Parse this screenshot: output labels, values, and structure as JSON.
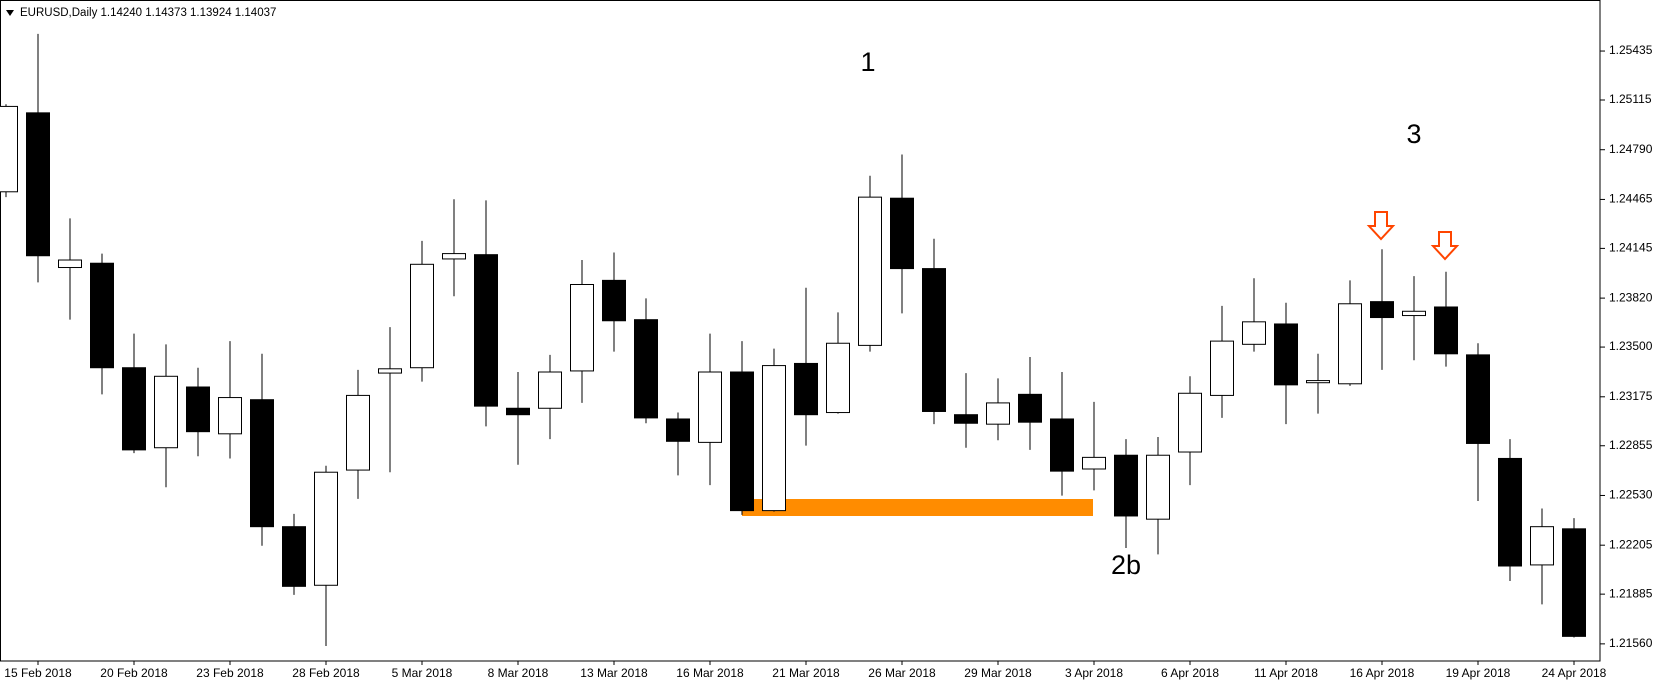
{
  "chart_data": {
    "type": "candlestick",
    "title": "EURUSD,Daily  1.14240 1.14373 1.13924 1.14037",
    "categories": [
      null,
      "15 Feb 2018",
      null,
      null,
      "20 Feb 2018",
      null,
      null,
      "23 Feb 2018",
      null,
      null,
      "28 Feb 2018",
      null,
      null,
      "5 Mar 2018",
      null,
      null,
      "8 Mar 2018",
      null,
      null,
      "13 Mar 2018",
      null,
      null,
      "16 Mar 2018",
      null,
      null,
      "21 Mar 2018",
      null,
      null,
      "26 Mar 2018",
      null,
      null,
      "29 Mar 2018",
      null,
      null,
      "3 Apr 2018",
      null,
      null,
      "6 Apr 2018",
      null,
      null,
      "11 Apr 2018",
      null,
      null,
      "16 Apr 2018",
      null,
      null,
      "19 Apr 2018",
      null,
      null,
      "24 Apr 2018"
    ],
    "open": [
      1.24515,
      1.25031,
      1.2402,
      1.24048,
      1.23365,
      1.22842,
      1.23239,
      1.22933,
      1.23156,
      1.22326,
      1.21943,
      1.22696,
      1.2333,
      1.23365,
      1.24076,
      1.24104,
      1.231,
      1.231,
      1.23344,
      1.23936,
      1.23679,
      1.2303,
      1.22877,
      1.23337,
      1.22431,
      1.23393,
      1.23072,
      1.23511,
      1.24473,
      1.24013,
      1.23058,
      1.22996,
      1.23191,
      1.2303,
      1.22703,
      1.22793,
      1.22375,
      1.22814,
      1.23184,
      1.23518,
      1.23651,
      1.23267,
      1.2326,
      1.23797,
      1.23706,
      1.23762,
      1.23449,
      1.22772,
      1.22076,
      1.22312
    ],
    "high": [
      1.25087,
      1.25547,
      1.24341,
      1.24111,
      1.23588,
      1.23518,
      1.23365,
      1.23539,
      1.23456,
      1.2241,
      1.22724,
      1.23351,
      1.2363,
      1.24194,
      1.24466,
      1.24459,
      1.23337,
      1.23449,
      1.24069,
      1.24118,
      1.23818,
      1.23072,
      1.23588,
      1.23539,
      1.2349,
      1.23888,
      1.23727,
      1.2462,
      1.24759,
      1.24208,
      1.2333,
      1.23295,
      1.23435,
      1.23337,
      1.23142,
      1.22898,
      1.22912,
      1.23309,
      1.23769,
      1.2395,
      1.2379,
      1.23456,
      1.23936,
      1.24139,
      1.23964,
      1.23992,
      1.23525,
      1.22898,
      1.22445,
      1.22382
    ],
    "low": [
      1.2448,
      1.23923,
      1.23679,
      1.23191,
      1.22807,
      1.22584,
      1.22786,
      1.22772,
      1.22201,
      1.2188,
      1.21546,
      1.22508,
      1.22682,
      1.23274,
      1.23832,
      1.22982,
      1.22731,
      1.22898,
      1.23135,
      1.2347,
      1.23002,
      1.22661,
      1.22598,
      1.22403,
      1.22424,
      1.22856,
      1.23065,
      1.2347,
      1.2372,
      1.22996,
      1.22842,
      1.22891,
      1.22828,
      1.22529,
      1.22563,
      1.22187,
      1.22145,
      1.22598,
      1.23037,
      1.2347,
      1.22996,
      1.23065,
      1.23246,
      1.23351,
      1.23414,
      1.23372,
      1.22494,
      1.21971,
      1.21818,
      1.21602
    ],
    "close": [
      1.25073,
      1.24097,
      1.24069,
      1.23365,
      1.22828,
      1.23309,
      1.22947,
      1.2317,
      1.22326,
      1.21936,
      1.22682,
      1.23184,
      1.23358,
      1.24041,
      1.24111,
      1.23114,
      1.23058,
      1.23337,
      1.23909,
      1.23672,
      1.23037,
      1.22884,
      1.23337,
      1.22431,
      1.23379,
      1.23058,
      1.23525,
      1.2448,
      1.24013,
      1.23079,
      1.23002,
      1.23135,
      1.23009,
      1.22689,
      1.22779,
      1.22396,
      1.22793,
      1.23198,
      1.23539,
      1.23665,
      1.23253,
      1.23281,
      1.23783,
      1.23693,
      1.23734,
      1.23456,
      1.2287,
      1.22069,
      1.22326,
      1.21609
    ],
    "up_color": "#ffffff",
    "down_color": "#000000",
    "ylim": [
      1.21448,
      1.25749
    ],
    "yticks": [
      1.25435,
      1.25115,
      {
        "value": 1.2479,
        "label": "1.24790"
      },
      1.24465,
      1.24145,
      {
        "value": 1.2382,
        "label": "1.23820"
      },
      {
        "value": 1.235,
        "label": "1.23500"
      },
      1.23175,
      1.22855,
      {
        "value": 1.2253,
        "label": "1.22530"
      },
      1.22205,
      1.21885,
      {
        "value": 1.2156,
        "label": "1.21560"
      }
    ],
    "annotations": [
      "1",
      "2b",
      "3"
    ]
  }
}
